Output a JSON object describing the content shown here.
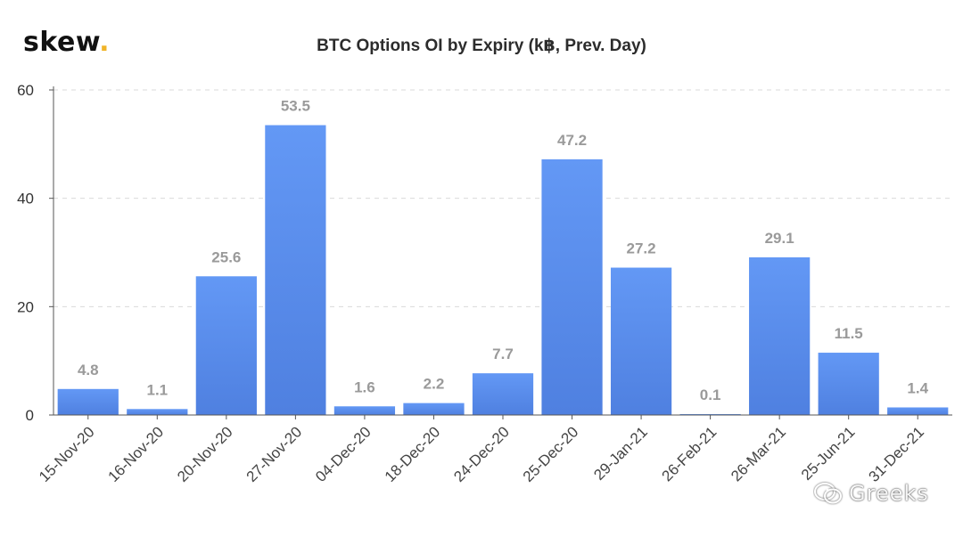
{
  "logo": {
    "text": "skew",
    "dot": "."
  },
  "watermark": {
    "text": "Greeks",
    "icon": "wechat-icon"
  },
  "colors": {
    "bar_top": "#6398f5",
    "bar_bottom": "#4f80e0",
    "label": "#9a9a9a",
    "axis": "#555555",
    "grid": "#d9d9d9",
    "logo_dot": "#f0b429"
  },
  "chart_data": {
    "type": "bar",
    "title": "BTC Options OI by Expiry (k฿, Prev. Day)",
    "xlabel": "",
    "ylabel": "",
    "ylim": [
      0,
      60
    ],
    "yticks": [
      0,
      20,
      40,
      60
    ],
    "grid": true,
    "categories": [
      "15-Nov-20",
      "16-Nov-20",
      "20-Nov-20",
      "27-Nov-20",
      "04-Dec-20",
      "18-Dec-20",
      "24-Dec-20",
      "25-Dec-20",
      "29-Jan-21",
      "26-Feb-21",
      "26-Mar-21",
      "25-Jun-21",
      "31-Dec-21"
    ],
    "values": [
      4.8,
      1.1,
      25.6,
      53.5,
      1.6,
      2.2,
      7.7,
      47.2,
      27.2,
      0.1,
      29.1,
      11.5,
      1.4
    ],
    "data_labels": [
      "4.8",
      "1.1",
      "25.6",
      "53.5",
      "1.6",
      "2.2",
      "7.7",
      "47.2",
      "27.2",
      "0.1",
      "29.1",
      "11.5",
      "1.4"
    ]
  }
}
